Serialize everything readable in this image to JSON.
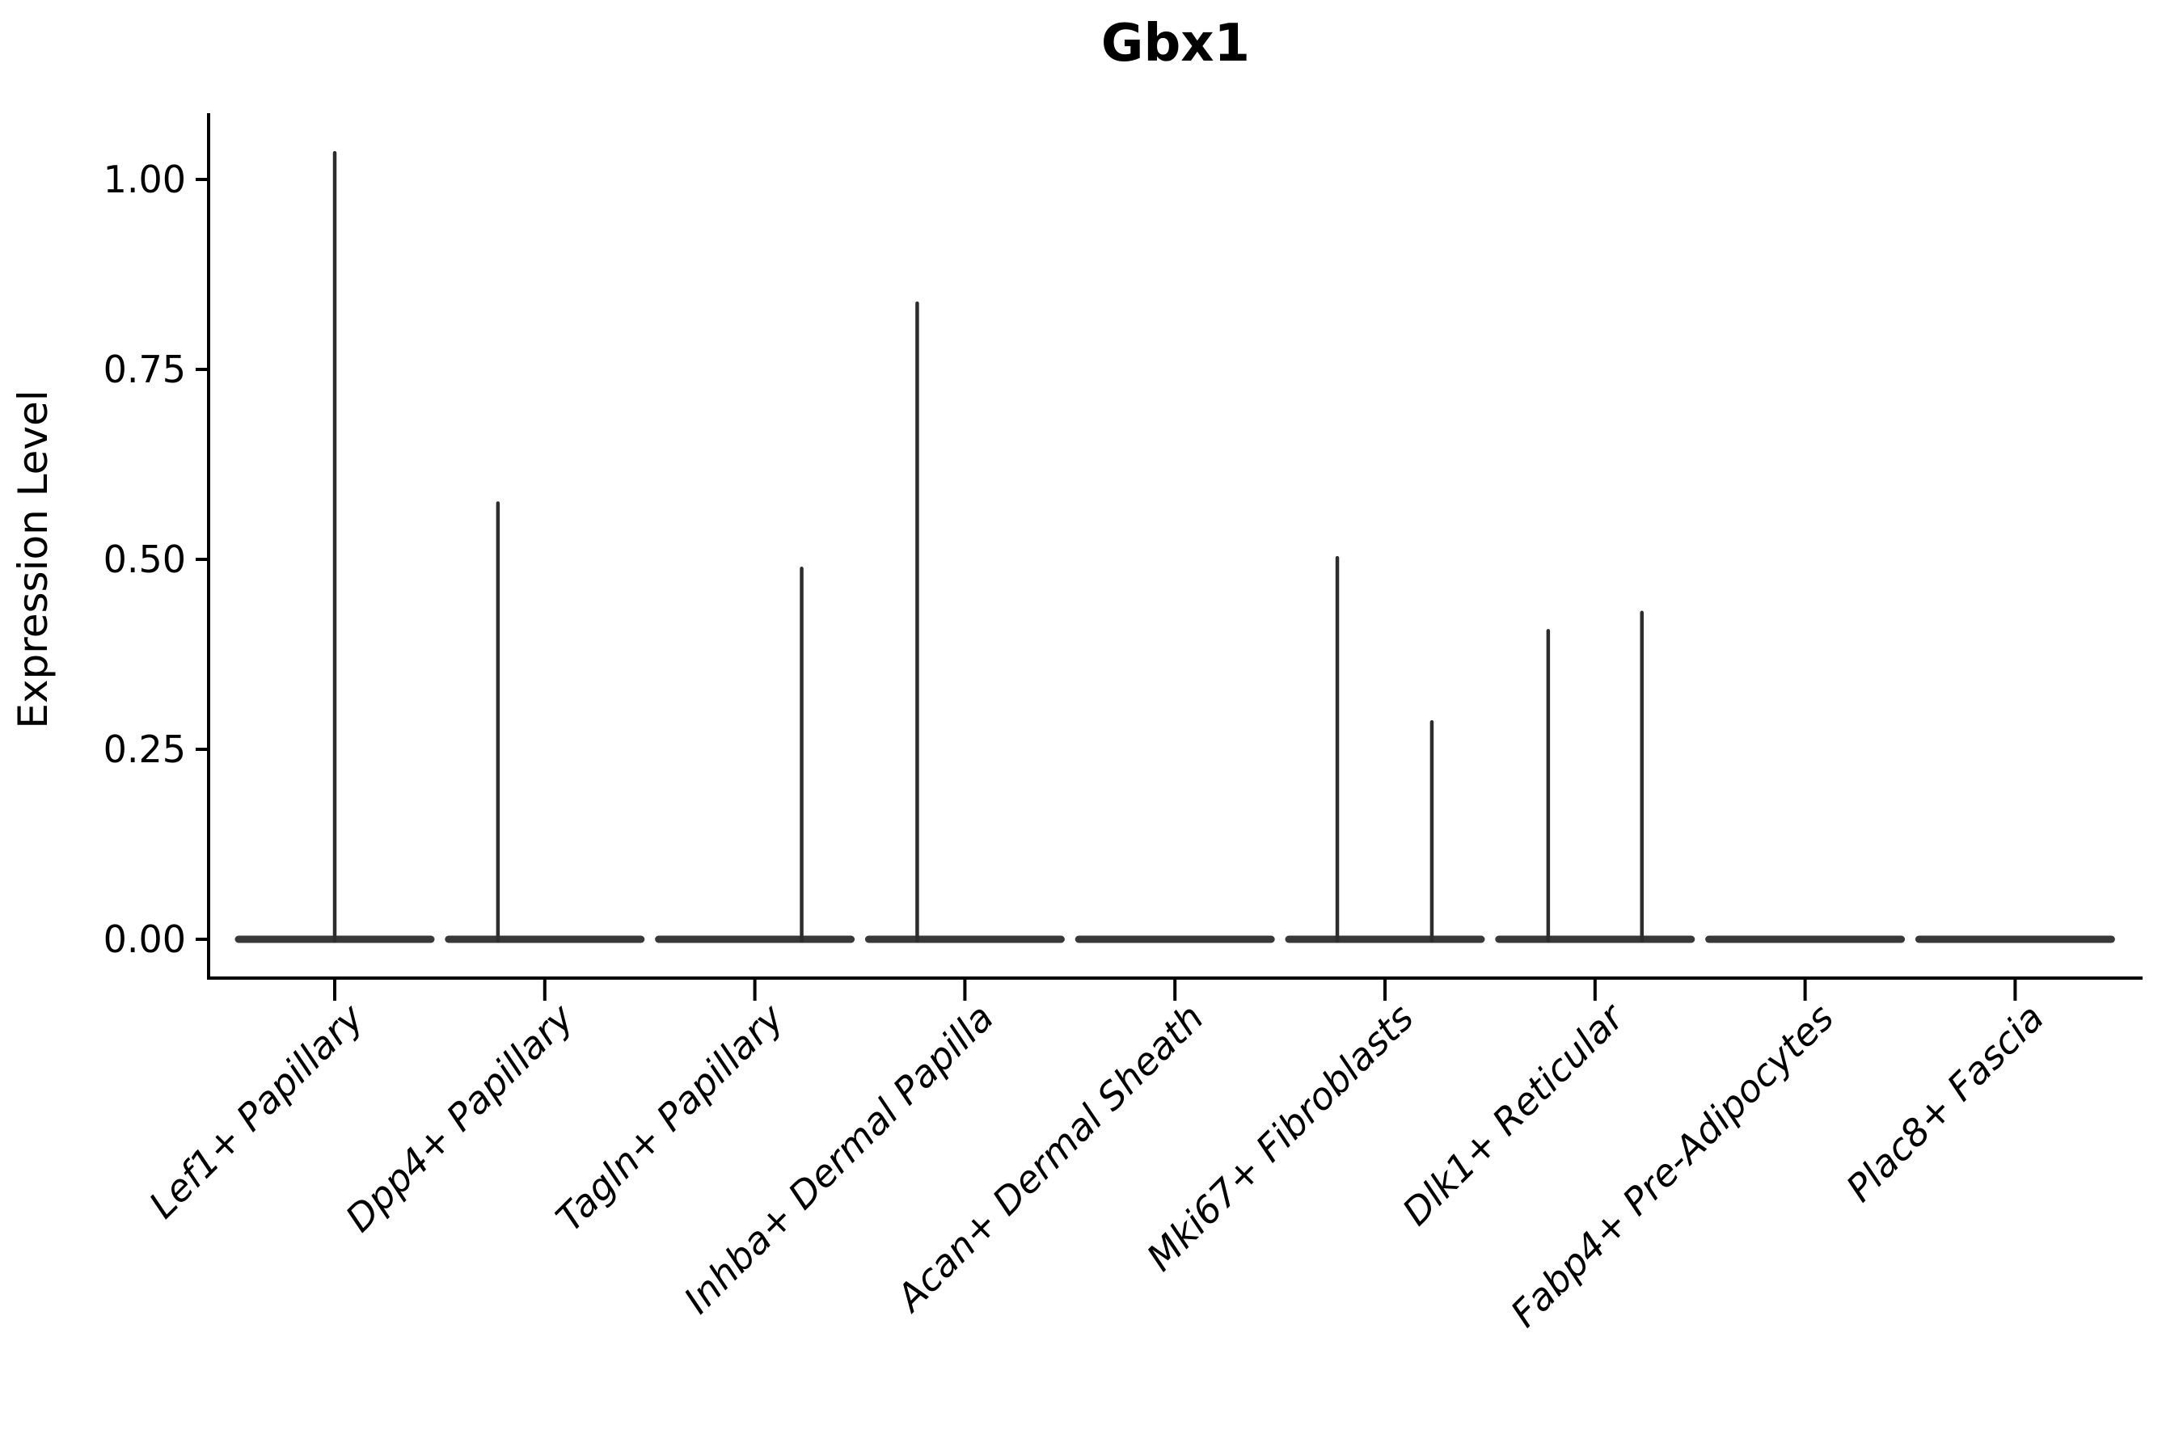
{
  "chart_data": {
    "type": "violin",
    "title": "Gbx1",
    "xlabel": "",
    "ylabel": "Expression Level",
    "ylim": [
      -0.05,
      1.09
    ],
    "ytick_values": [
      0.0,
      0.25,
      0.5,
      0.75,
      1.0
    ],
    "ytick_labels": [
      "0.00",
      "0.25",
      "0.50",
      "0.75",
      "1.00"
    ],
    "grid": false,
    "legend": "none",
    "violin_baseline_value": 0.0,
    "violin_halfwidth_units": 0.458,
    "categories": [
      {
        "label": "Lef1+ Papillary",
        "spikes": [
          {
            "offset": 0.0,
            "value": 1.035
          }
        ]
      },
      {
        "label": "Dpp4+ Papillary",
        "spikes": [
          {
            "offset": -0.223,
            "value": 0.574
          }
        ]
      },
      {
        "label": "Tagln+ Papillary",
        "spikes": [
          {
            "offset": 0.223,
            "value": 0.488
          }
        ]
      },
      {
        "label": "Inhba+ Dermal Papilla",
        "spikes": [
          {
            "offset": -0.227,
            "value": 0.837
          }
        ]
      },
      {
        "label": "Acan+ Dermal Sheath",
        "spikes": []
      },
      {
        "label": "Mki67+ Fibroblasts",
        "spikes": [
          {
            "offset": -0.227,
            "value": 0.502
          },
          {
            "offset": 0.223,
            "value": 0.286
          }
        ]
      },
      {
        "label": "Dlk1+ Reticular",
        "spikes": [
          {
            "offset": -0.223,
            "value": 0.406
          },
          {
            "offset": 0.223,
            "value": 0.43
          }
        ]
      },
      {
        "label": "Fabp4+ Pre-Adipocytes",
        "spikes": []
      },
      {
        "label": "Plac8+ Fascia",
        "spikes": []
      }
    ],
    "colors": {
      "background": "#ffffff",
      "axis": "#000000",
      "text": "#000000",
      "violin_baseline": "#383838",
      "spike": "#2d2d2d"
    }
  }
}
